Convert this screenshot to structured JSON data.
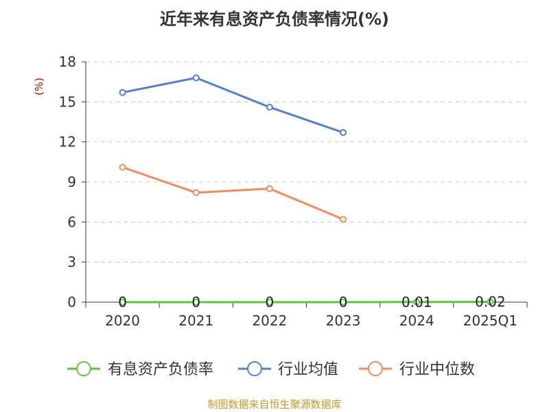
{
  "chart_data": {
    "type": "line",
    "title": "近年来有息资产负债率情况(%)",
    "ylabel": "(%)",
    "xlabel": "",
    "categories": [
      "2020",
      "2021",
      "2022",
      "2023",
      "2024",
      "2025Q1"
    ],
    "ylim": [
      0,
      18
    ],
    "yticks": [
      0,
      3,
      6,
      9,
      12,
      15,
      18
    ],
    "grid": true,
    "legend_position": "bottom",
    "series": [
      {
        "name": "有息资产负债率",
        "color": "#5ac73a",
        "values": [
          0,
          0,
          0,
          0,
          0.01,
          0.02
        ],
        "data_labels": [
          "0",
          "0",
          "0",
          "0",
          "0.01",
          "0.02"
        ]
      },
      {
        "name": "行业均值",
        "color": "#4f7fd9",
        "values": [
          15.7,
          16.8,
          14.6,
          12.7,
          null,
          null
        ]
      },
      {
        "name": "行业中位数",
        "color": "#f28c58",
        "values": [
          10.1,
          8.2,
          8.5,
          6.2,
          null,
          null
        ]
      }
    ]
  },
  "source": "制图数据来自恒生聚源数据库"
}
